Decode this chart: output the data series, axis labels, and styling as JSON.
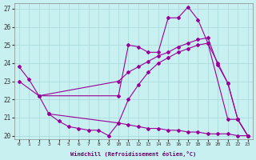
{
  "xlabel": "Windchill (Refroidissement éolien,°C)",
  "bg_color": "#c8f0f0",
  "grid_color": "#a8d8d8",
  "line_color": "#990099",
  "xlim": [
    -0.5,
    23.5
  ],
  "ylim": [
    19.8,
    27.3
  ],
  "yticks": [
    20,
    21,
    22,
    23,
    24,
    25,
    26,
    27
  ],
  "xticks": [
    0,
    1,
    2,
    3,
    4,
    5,
    6,
    7,
    8,
    9,
    10,
    11,
    12,
    13,
    14,
    15,
    16,
    17,
    18,
    19,
    20,
    21,
    22,
    23
  ],
  "lines": [
    {
      "x": [
        0,
        1,
        2,
        10,
        11,
        12,
        13,
        14,
        15,
        16,
        17,
        18,
        19,
        21,
        22,
        23
      ],
      "y": [
        23.8,
        23.1,
        22.2,
        22.2,
        25.0,
        24.9,
        24.6,
        24.6,
        26.5,
        26.5,
        27.1,
        26.4,
        25.1,
        20.9,
        20.9,
        20.0
      ]
    },
    {
      "x": [
        0,
        2,
        10,
        11,
        12,
        13,
        14,
        15,
        16,
        17,
        18,
        19,
        20,
        21,
        22,
        23
      ],
      "y": [
        23.0,
        22.2,
        23.0,
        23.5,
        23.8,
        24.1,
        24.4,
        24.6,
        24.9,
        25.1,
        25.3,
        25.4,
        23.9,
        22.9,
        20.9,
        20.0
      ]
    },
    {
      "x": [
        2,
        3,
        10,
        11,
        12,
        13,
        14,
        15,
        16,
        17,
        18,
        19,
        20,
        21,
        22,
        23
      ],
      "y": [
        22.2,
        21.2,
        20.7,
        22.0,
        22.8,
        23.5,
        24.0,
        24.3,
        24.6,
        24.8,
        25.0,
        25.1,
        24.0,
        22.9,
        20.9,
        20.0
      ]
    },
    {
      "x": [
        3,
        4,
        5,
        6,
        7,
        8,
        9,
        10,
        11,
        12,
        13,
        14,
        15,
        16,
        17,
        18,
        19,
        20,
        21,
        22,
        23
      ],
      "y": [
        21.2,
        20.8,
        20.5,
        20.4,
        20.3,
        20.3,
        20.0,
        20.7,
        20.6,
        20.5,
        20.4,
        20.4,
        20.3,
        20.3,
        20.2,
        20.2,
        20.1,
        20.1,
        20.1,
        20.0,
        20.0
      ]
    }
  ]
}
